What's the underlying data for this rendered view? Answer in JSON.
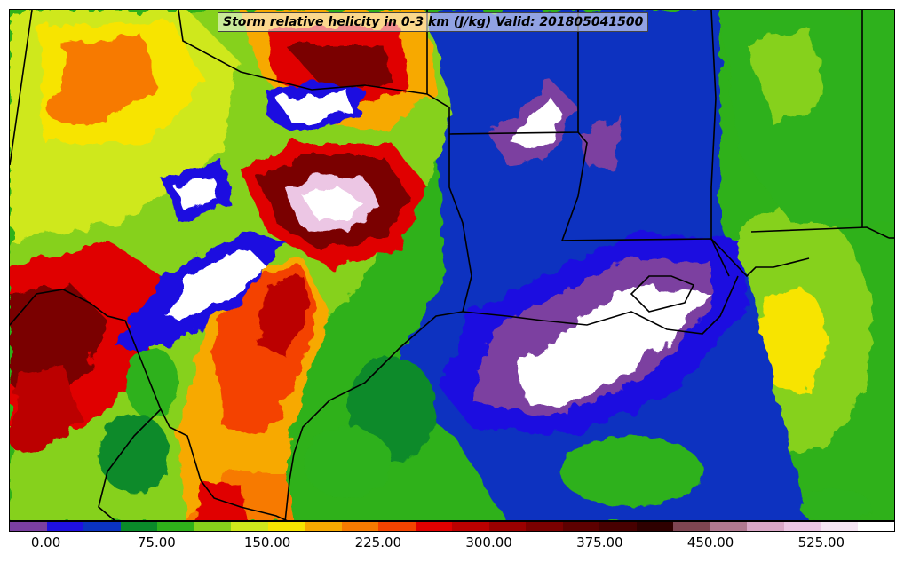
{
  "title": "Storm relative helicity in 0-3 km (J/kg) Valid: 201805041500",
  "colorbar": {
    "colors": [
      "#7b3fa0",
      "#1f10e0",
      "#0b33c0",
      "#0a8a2a",
      "#2fb11a",
      "#86d11b",
      "#cfe81c",
      "#f7e400",
      "#f7a900",
      "#f77a00",
      "#f44300",
      "#e00000",
      "#bb0000",
      "#9a0000",
      "#7a0000",
      "#5d0000",
      "#470000",
      "#2e0000",
      "#7e4552",
      "#b07890",
      "#d9a7c7",
      "#ecc6e4",
      "#f5e4f3",
      "#ffffff"
    ],
    "tick_labels": [
      "0.00",
      "75.00",
      "150.00",
      "225.00",
      "300.00",
      "375.00",
      "450.00",
      "525.00"
    ],
    "tick_values": [
      0,
      75,
      150,
      225,
      300,
      375,
      450,
      525
    ],
    "range": [
      -25,
      575
    ]
  }
}
